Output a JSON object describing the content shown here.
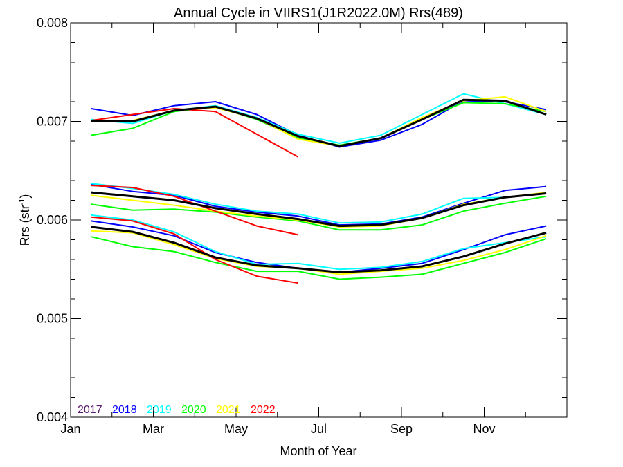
{
  "chart_data": {
    "type": "line",
    "title": "Annual Cycle in VIIRS1(J1R2022.0M) Rrs(489)",
    "xlabel": "Month of Year",
    "ylabel": "Rrs (str",
    "ylabel_sup": "-1",
    "ylabel_close": ")",
    "xlim": [
      1,
      13
    ],
    "ylim": [
      0.004,
      0.008
    ],
    "xticks": [
      {
        "value": 1,
        "label": "Jan"
      },
      {
        "value": 3,
        "label": "Mar"
      },
      {
        "value": 5,
        "label": "May"
      },
      {
        "value": 7,
        "label": "Jul"
      },
      {
        "value": 9,
        "label": "Sep"
      },
      {
        "value": 11,
        "label": "Nov"
      }
    ],
    "yticks": [
      {
        "value": 0.004,
        "label": "0.004"
      },
      {
        "value": 0.005,
        "label": "0.005"
      },
      {
        "value": 0.006,
        "label": "0.006"
      },
      {
        "value": 0.007,
        "label": "0.007"
      },
      {
        "value": 0.008,
        "label": "0.008"
      }
    ],
    "legend": [
      {
        "label": "2017",
        "color": "#5a1a6e"
      },
      {
        "label": "2018",
        "color": "#0000ff"
      },
      {
        "label": "2019",
        "color": "#00ffff"
      },
      {
        "label": "2020",
        "color": "#00ff00"
      },
      {
        "label": "2021",
        "color": "#ffff00"
      },
      {
        "label": "2022",
        "color": "#ff0000"
      }
    ],
    "legend_position": "bottom-left",
    "x": [
      1.5,
      2.5,
      3.5,
      4.5,
      5.5,
      6.5,
      7.5,
      8.5,
      9.5,
      10.5,
      11.5,
      12.5
    ],
    "groups": [
      {
        "series": [
          {
            "color": "#0000ff",
            "values": [
              0.00713,
              0.00706,
              0.00716,
              0.0072,
              0.00707,
              0.00686,
              0.00674,
              0.00681,
              0.00697,
              0.00721,
              0.0072,
              0.00712
            ]
          },
          {
            "color": "#00ffff",
            "values": [
              0.00702,
              0.00698,
              0.00711,
              0.00716,
              0.00704,
              0.00687,
              0.00678,
              0.00686,
              0.00707,
              0.00728,
              0.00718,
              0.00707
            ]
          },
          {
            "color": "#00ff00",
            "values": [
              0.00686,
              0.00693,
              0.0071,
              0.00715,
              0.00702,
              0.00683,
              0.00676,
              0.00683,
              0.00702,
              0.00719,
              0.00718,
              0.0071
            ]
          },
          {
            "color": "#ffff00",
            "values": [
              0.007,
              0.00701,
              0.00711,
              0.00714,
              0.00703,
              0.00682,
              0.00675,
              0.00683,
              0.00704,
              0.00721,
              0.00725,
              0.0071
            ]
          },
          {
            "color": "#ff0000",
            "values": [
              0.00701,
              0.00707,
              0.00713,
              0.0071,
              0.00687,
              0.00664
            ]
          },
          {
            "color": "#000000",
            "values": [
              0.007,
              0.007,
              0.00711,
              0.00715,
              0.00703,
              0.00685,
              0.00675,
              0.00683,
              0.00702,
              0.00722,
              0.00721,
              0.00707
            ]
          }
        ]
      },
      {
        "series": [
          {
            "color": "#0000ff",
            "values": [
              0.00636,
              0.00629,
              0.00625,
              0.00614,
              0.00608,
              0.00604,
              0.00595,
              0.00596,
              0.00603,
              0.00617,
              0.0063,
              0.00634
            ]
          },
          {
            "color": "#00ffff",
            "values": [
              0.00637,
              0.00632,
              0.00626,
              0.00616,
              0.00609,
              0.00606,
              0.00597,
              0.00598,
              0.00606,
              0.00622,
              0.00623,
              0.00627
            ]
          },
          {
            "color": "#00ff00",
            "values": [
              0.00616,
              0.0061,
              0.00611,
              0.00608,
              0.00603,
              0.00599,
              0.0059,
              0.0059,
              0.00595,
              0.00609,
              0.00617,
              0.00624
            ]
          },
          {
            "color": "#ffff00",
            "values": [
              0.00625,
              0.0062,
              0.00615,
              0.00609,
              0.00604,
              0.006,
              0.00593,
              0.00594,
              0.00602,
              0.00616,
              0.00623,
              0.00628
            ]
          },
          {
            "color": "#ff0000",
            "values": [
              0.00635,
              0.00633,
              0.00624,
              0.00609,
              0.00594,
              0.00585
            ]
          },
          {
            "color": "#000000",
            "values": [
              0.00628,
              0.00624,
              0.0062,
              0.00612,
              0.00606,
              0.00601,
              0.00594,
              0.00595,
              0.00602,
              0.00615,
              0.00623,
              0.00627
            ]
          }
        ]
      },
      {
        "series": [
          {
            "color": "#0000ff",
            "values": [
              0.00599,
              0.00593,
              0.00584,
              0.00567,
              0.00557,
              0.00551,
              0.00547,
              0.00551,
              0.00556,
              0.0057,
              0.00585,
              0.00594
            ]
          },
          {
            "color": "#00ffff",
            "values": [
              0.00605,
              0.006,
              0.00588,
              0.00568,
              0.00555,
              0.00556,
              0.0055,
              0.00552,
              0.00558,
              0.00571,
              0.00577,
              0.00583
            ]
          },
          {
            "color": "#00ff00",
            "values": [
              0.00583,
              0.00573,
              0.00568,
              0.00557,
              0.00548,
              0.00548,
              0.0054,
              0.00542,
              0.00545,
              0.00556,
              0.00567,
              0.00581
            ]
          },
          {
            "color": "#ffff00",
            "values": [
              0.00589,
              0.00587,
              0.00575,
              0.00561,
              0.00553,
              0.00551,
              0.00545,
              0.00548,
              0.00551,
              0.00559,
              0.0057,
              0.00584
            ]
          },
          {
            "color": "#ff0000",
            "values": [
              0.00603,
              0.00599,
              0.00586,
              0.0056,
              0.00543,
              0.00536
            ]
          },
          {
            "color": "#000000",
            "values": [
              0.00593,
              0.00588,
              0.00577,
              0.00562,
              0.00554,
              0.00551,
              0.00547,
              0.00549,
              0.00553,
              0.00563,
              0.00576,
              0.00587
            ]
          }
        ]
      }
    ]
  }
}
